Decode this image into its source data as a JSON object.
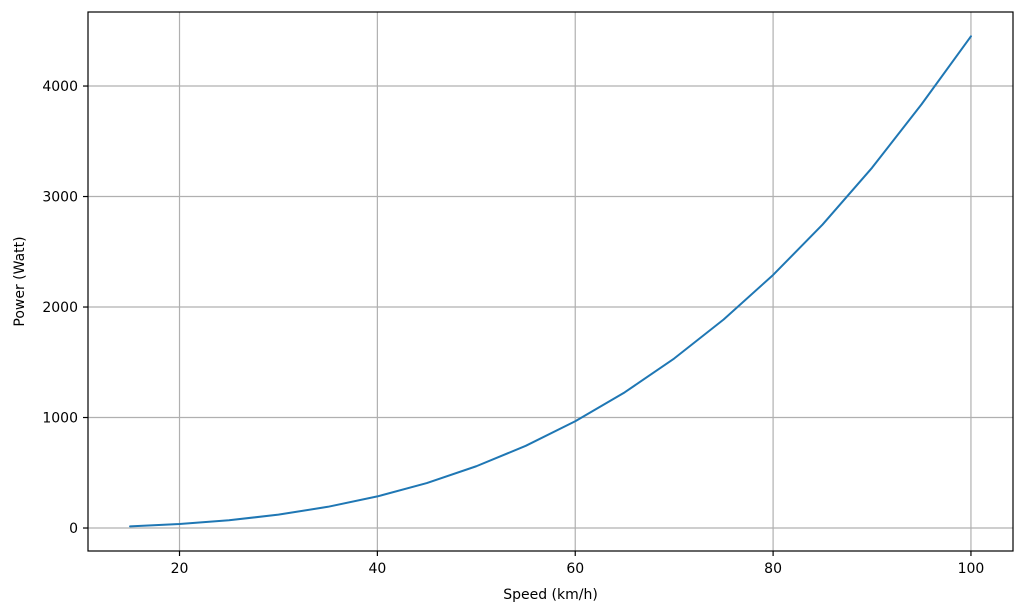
{
  "chart_data": {
    "type": "line",
    "title": "",
    "xlabel": "Speed (km/h)",
    "ylabel": "Power (Watt)",
    "xlim": [
      10.75,
      104.25
    ],
    "ylim": [
      -208,
      4670
    ],
    "xticks": [
      20,
      40,
      60,
      80,
      100
    ],
    "yticks": [
      0,
      1000,
      2000,
      3000,
      4000
    ],
    "grid": true,
    "series": [
      {
        "color": "#1f77b4",
        "x": [
          15,
          20,
          25,
          30,
          35,
          40,
          45,
          50,
          55,
          60,
          65,
          70,
          75,
          80,
          85,
          90,
          95,
          100
        ],
        "y": [
          15,
          36,
          70,
          121,
          192,
          286,
          407,
          559,
          744,
          966,
          1228,
          1534,
          1887,
          2290,
          2746,
          3260,
          3834,
          4450
        ]
      }
    ]
  }
}
